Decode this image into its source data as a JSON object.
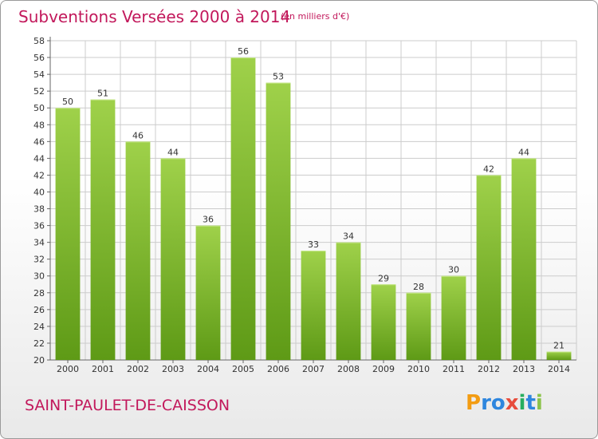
{
  "title": "Subventions Versées 2000 à 2014",
  "subtitle": "(en milliers d'€)",
  "commune": "SAINT-PAULET-DE-CAISSON",
  "logo": {
    "letters": [
      "P",
      "r",
      "o",
      "x",
      "i",
      "t",
      "i"
    ],
    "colors": [
      "#f39c12",
      "#2e86de",
      "#2e86de",
      "#e74c3c",
      "#27ae60",
      "#2e86de",
      "#8bc34a"
    ]
  },
  "colors": {
    "bar_light": "#9fd14a",
    "bar_dark": "#5e9a16",
    "grid": "#cccccc",
    "accent": "#c2185b"
  },
  "chart_data": {
    "type": "bar",
    "categories": [
      "2000",
      "2001",
      "2002",
      "2003",
      "2004",
      "2005",
      "2006",
      "2007",
      "2008",
      "2009",
      "2010",
      "2011",
      "2012",
      "2013",
      "2014"
    ],
    "values": [
      50,
      51,
      46,
      44,
      36,
      56,
      53,
      33,
      34,
      29,
      28,
      30,
      42,
      44,
      21
    ],
    "ylim": [
      20,
      58
    ],
    "yticks": [
      20,
      22,
      24,
      26,
      28,
      30,
      32,
      34,
      36,
      38,
      40,
      42,
      44,
      46,
      48,
      50,
      52,
      54,
      56,
      58
    ],
    "grid": true
  }
}
